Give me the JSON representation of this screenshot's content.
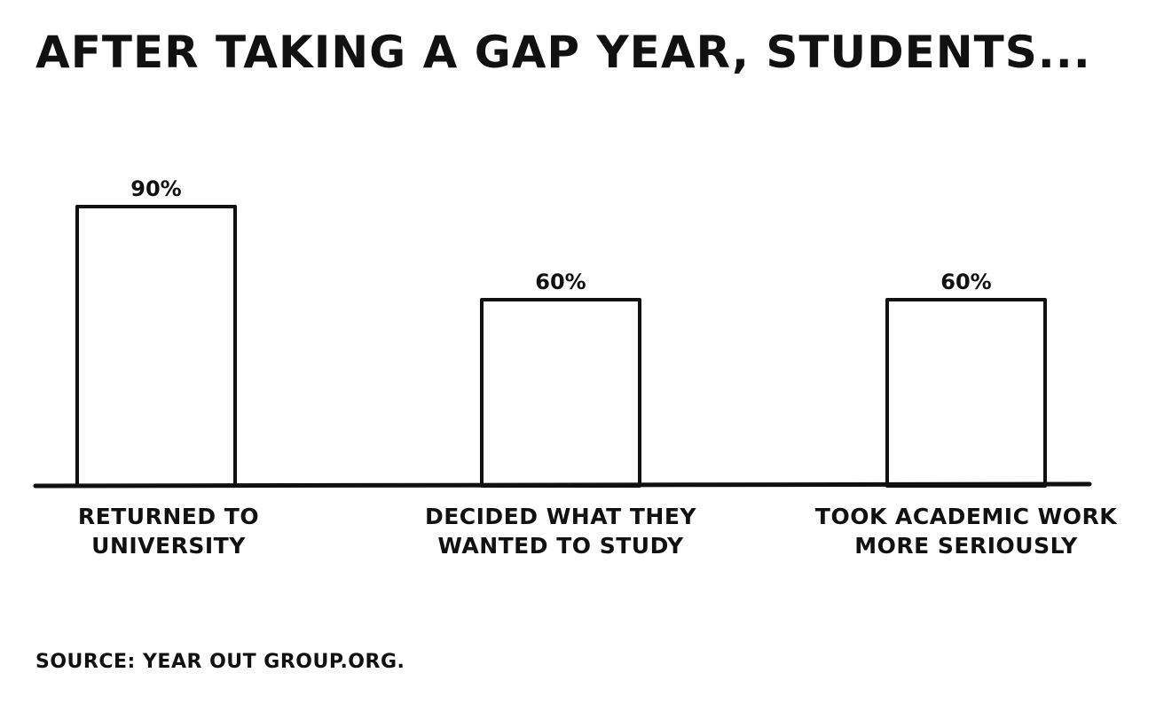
{
  "chart_data": {
    "type": "bar",
    "title": "AFTER TAKING A GAP YEAR, STUDENTS...",
    "categories": [
      [
        "RETURNED TO",
        "UNIVERSITY"
      ],
      [
        "DECIDED WHAT THEY",
        "WANTED TO STUDY"
      ],
      [
        "TOOK ACADEMIC WORK",
        "MORE SERIOUSLY"
      ]
    ],
    "values": [
      90,
      60,
      60
    ],
    "value_labels": [
      "90%",
      "60%",
      "60%"
    ],
    "unit": "%",
    "xlabel": "",
    "ylabel": "",
    "ylim": [
      0,
      100
    ],
    "grid": false,
    "bar_fill": "#ffffff",
    "stroke_color": "#111111",
    "source": "SOURCE: YEAR OUT GROUP.ORG."
  }
}
